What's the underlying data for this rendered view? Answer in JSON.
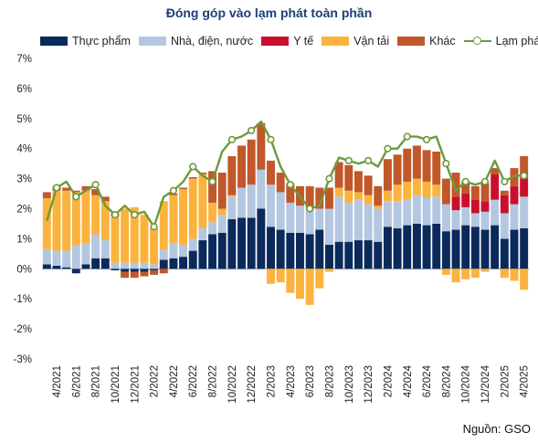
{
  "title": "Đóng góp vào lạm phát toàn phần",
  "source": "Nguồn: GSO",
  "legend": [
    {
      "label": "Thực phẩm",
      "color": "#0b2a5c"
    },
    {
      "label": "Nhà, điện, nước",
      "color": "#b4c7e0"
    },
    {
      "label": "Y tế",
      "color": "#c8102e"
    },
    {
      "label": "Vận tải",
      "color": "#fbb33d"
    },
    {
      "label": "Khác",
      "color": "#c0582a"
    },
    {
      "label": "Lạm phát",
      "color": "#6b9a3b"
    }
  ],
  "chart_data": {
    "type": "bar",
    "stacked": true,
    "title": "Đóng góp vào lạm phát toàn phần",
    "ylim": [
      -3,
      7
    ],
    "yticks": [
      "-3%",
      "-2%",
      "-1%",
      "0%",
      "1%",
      "2%",
      "3%",
      "4%",
      "5%",
      "6%",
      "7%"
    ],
    "ytick_values": [
      -3,
      -2,
      -1,
      0,
      1,
      2,
      3,
      4,
      5,
      6,
      7
    ],
    "xtick_labels": [
      "4/2021",
      "6/2021",
      "8/2021",
      "10/2021",
      "12/2021",
      "2/2022",
      "4/2022",
      "6/2022",
      "8/2022",
      "10/2022",
      "12/2022",
      "2/2023",
      "4/2023",
      "6/2023",
      "8/2023",
      "10/2023",
      "12/2023",
      "2/2024",
      "4/2024",
      "6/2024",
      "8/2024",
      "10/2024",
      "12/2024",
      "2/2025",
      "4/2025"
    ],
    "categories": [
      "3/2021",
      "4/2021",
      "5/2021",
      "6/2021",
      "7/2021",
      "8/2021",
      "9/2021",
      "10/2021",
      "11/2021",
      "12/2021",
      "1/2022",
      "2/2022",
      "3/2022",
      "4/2022",
      "5/2022",
      "6/2022",
      "7/2022",
      "8/2022",
      "9/2022",
      "10/2022",
      "11/2022",
      "12/2022",
      "1/2023",
      "2/2023",
      "3/2023",
      "4/2023",
      "5/2023",
      "6/2023",
      "7/2023",
      "8/2023",
      "9/2023",
      "10/2023",
      "11/2023",
      "12/2023",
      "1/2024",
      "2/2024",
      "3/2024",
      "4/2024",
      "5/2024",
      "6/2024",
      "7/2024",
      "8/2024",
      "9/2024",
      "10/2024",
      "11/2024",
      "12/2024",
      "1/2025",
      "2/2025",
      "3/2025",
      "4/2025"
    ],
    "series": [
      {
        "name": "Thực phẩm",
        "color": "#0b2a5c",
        "values": [
          0.15,
          0.1,
          0.05,
          -0.15,
          0.15,
          0.35,
          0.35,
          -0.05,
          -0.1,
          -0.1,
          -0.1,
          -0.05,
          0.3,
          0.35,
          0.4,
          0.6,
          0.95,
          1.15,
          1.2,
          1.65,
          1.7,
          1.7,
          2.0,
          1.4,
          1.3,
          1.2,
          1.2,
          1.15,
          1.3,
          0.8,
          0.9,
          0.9,
          0.95,
          0.95,
          0.9,
          1.4,
          1.35,
          1.45,
          1.5,
          1.45,
          1.5,
          1.25,
          1.3,
          1.45,
          1.4,
          1.3,
          1.45,
          1.0,
          1.3,
          1.35
        ]
      },
      {
        "name": "Nhà, điện, nước",
        "color": "#b4c7e0",
        "values": [
          0.5,
          0.5,
          0.55,
          0.8,
          0.7,
          0.8,
          0.6,
          0.2,
          0.2,
          0.2,
          0.2,
          0.15,
          0.35,
          0.5,
          0.4,
          0.4,
          0.4,
          0.4,
          0.6,
          0.75,
          1.0,
          1.1,
          1.3,
          1.4,
          1.25,
          1.0,
          0.9,
          0.9,
          0.7,
          1.2,
          1.5,
          1.3,
          1.35,
          1.2,
          1.1,
          0.85,
          0.9,
          0.85,
          0.95,
          0.9,
          0.9,
          0.9,
          0.65,
          0.6,
          0.45,
          0.6,
          0.85,
          0.85,
          0.85,
          1.05
        ]
      },
      {
        "name": "Y tế",
        "color": "#c8102e",
        "values": [
          0,
          0,
          0,
          0,
          0,
          0,
          0,
          0,
          0,
          0,
          0,
          0,
          0,
          0,
          0,
          0,
          0,
          0,
          0,
          0,
          0,
          0,
          0,
          0,
          0,
          0,
          0,
          0,
          0,
          0,
          0,
          0,
          0,
          0,
          0,
          0,
          0,
          0,
          0,
          0,
          0,
          0,
          0.45,
          0.45,
          0.45,
          0.35,
          0.85,
          0.6,
          0.6,
          0.6
        ]
      },
      {
        "name": "Vận tải",
        "color": "#fbb33d",
        "values": [
          1.7,
          2.0,
          2.0,
          1.75,
          1.75,
          1.3,
          1.3,
          1.55,
          1.8,
          1.85,
          1.6,
          1.2,
          1.6,
          1.6,
          1.85,
          2.0,
          1.8,
          0.65,
          0.2,
          0.05,
          0,
          0,
          0,
          -0.5,
          -0.45,
          -0.8,
          -1.0,
          -1.2,
          -0.65,
          -0.1,
          0.3,
          0.4,
          0.25,
          0.3,
          0.1,
          0.35,
          0.55,
          0.6,
          0.55,
          0.55,
          0.4,
          -0.2,
          -0.45,
          -0.35,
          -0.3,
          -0.1,
          0,
          -0.3,
          -0.4,
          -0.7
        ]
      },
      {
        "name": "Khác",
        "color": "#c0582a",
        "values": [
          0.2,
          0.15,
          0.1,
          0.05,
          0.15,
          0.2,
          0.15,
          0.1,
          -0.2,
          -0.2,
          -0.15,
          -0.15,
          -0.15,
          0.05,
          0.05,
          0.05,
          0.05,
          1.05,
          1.2,
          1.3,
          1.4,
          1.5,
          1.55,
          0.8,
          0.65,
          0.65,
          0.65,
          0.7,
          0.7,
          0.7,
          0.85,
          0.85,
          0.7,
          0.65,
          0.65,
          1.05,
          1.0,
          1.1,
          1.1,
          1.05,
          1.1,
          0.85,
          0.8,
          0.4,
          0.45,
          0.6,
          0.2,
          0.15,
          0.6,
          0.75
        ]
      }
    ],
    "line": {
      "name": "Lạm phát",
      "color": "#6b9a3b",
      "values": [
        1.6,
        2.7,
        2.9,
        2.4,
        2.6,
        2.8,
        2.1,
        1.8,
        2.1,
        1.8,
        1.9,
        1.4,
        2.4,
        2.6,
        2.9,
        3.4,
        3.1,
        2.9,
        3.9,
        4.3,
        4.4,
        4.6,
        4.9,
        4.3,
        3.4,
        2.8,
        2.4,
        2.0,
        2.1,
        3.0,
        3.7,
        3.6,
        3.5,
        3.6,
        3.4,
        4.0,
        4.0,
        4.4,
        4.4,
        4.3,
        4.4,
        3.5,
        2.6,
        2.9,
        2.8,
        2.9,
        3.6,
        2.9,
        3.1,
        3.1
      ]
    }
  }
}
